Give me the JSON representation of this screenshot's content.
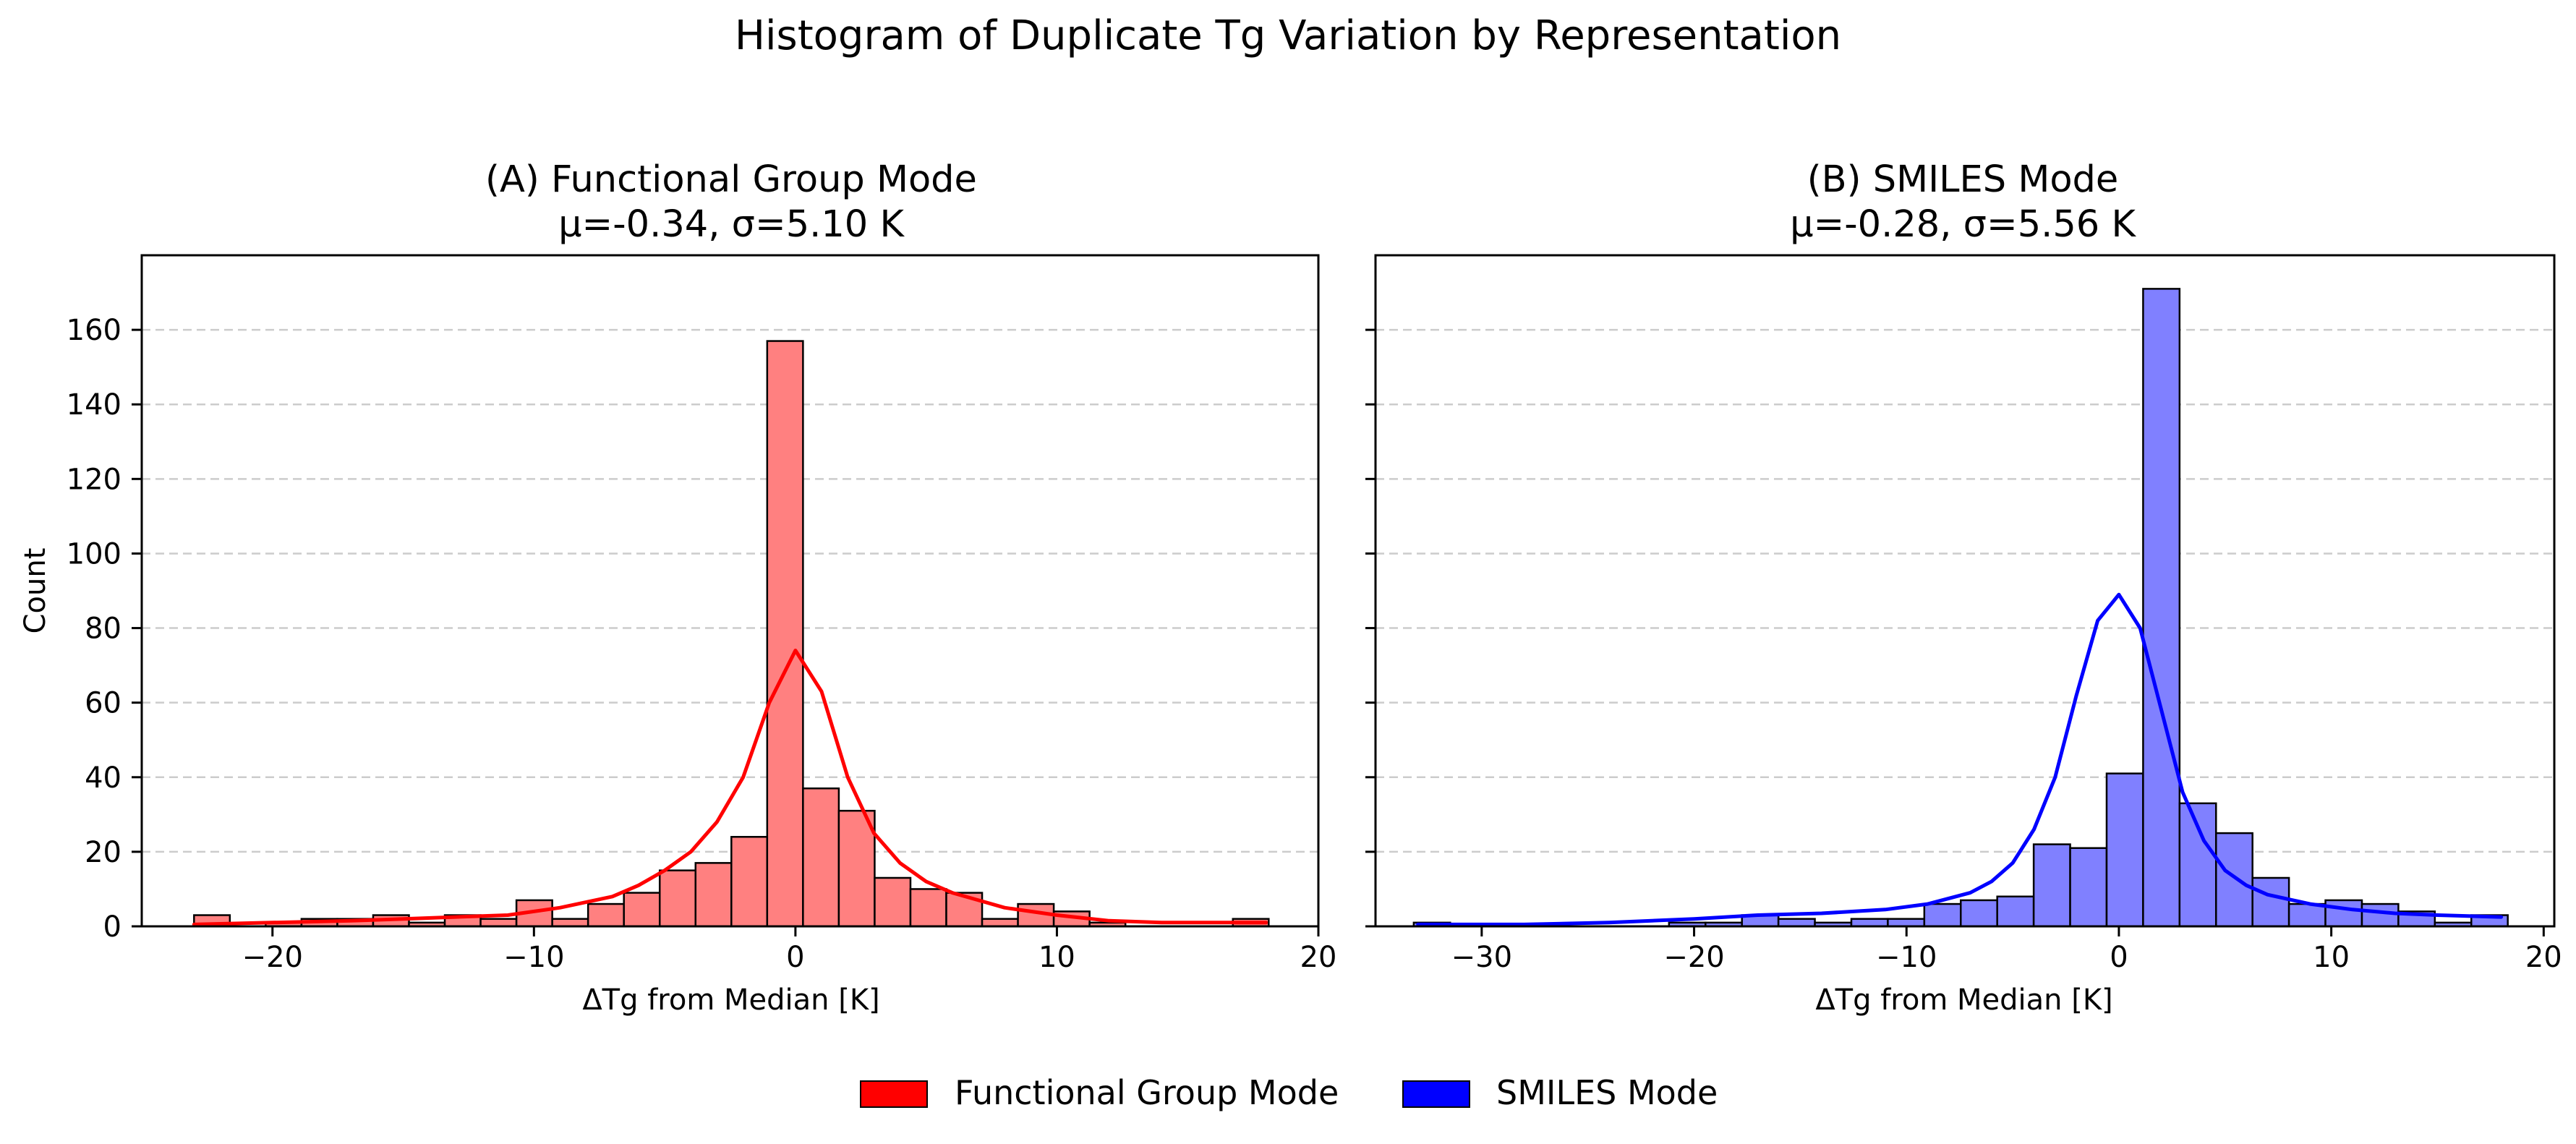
{
  "figure": {
    "suptitle": "Histogram of Duplicate Tg Variation by Representation"
  },
  "legend": {
    "placement": "bottom-center",
    "items": [
      {
        "label": "Functional Group Mode",
        "color": "#ff0000"
      },
      {
        "label": "SMILES Mode",
        "color": "#0000ff"
      }
    ]
  },
  "colors": {
    "grid": "#cccccc",
    "bar_edge": "#000000"
  },
  "chart_data": [
    {
      "type": "bar",
      "title": "(A) Functional Group Mode",
      "subtitle": "μ=-0.34, σ=5.10 K",
      "xlabel": "ΔTg from Median [K]",
      "ylabel": "Count",
      "xlim": [
        -25,
        20
      ],
      "ylim": [
        0,
        180
      ],
      "xticks": [
        -20,
        -10,
        0,
        10,
        20
      ],
      "xtick_labels": [
        "−20",
        "−10",
        "0",
        "10",
        "20"
      ],
      "yticks": [
        0,
        20,
        40,
        60,
        80,
        100,
        120,
        140,
        160
      ],
      "grid": "y, dashed",
      "bar_color": "#ff8080",
      "line_color": "#ff0000",
      "bins": {
        "start": -23.0,
        "width": 1.37,
        "counts": [
          3,
          0,
          1,
          2,
          2,
          3,
          1,
          3,
          2,
          7,
          2,
          6,
          9,
          15,
          17,
          24,
          157,
          37,
          31,
          13,
          10,
          9,
          2,
          6,
          4,
          1,
          0,
          0,
          0,
          2
        ]
      },
      "kde": {
        "x": [
          -23,
          -20,
          -17,
          -15,
          -13,
          -11,
          -9,
          -7,
          -6,
          -5,
          -4,
          -3,
          -2,
          -1,
          0,
          1,
          2,
          3,
          4,
          5,
          6,
          7,
          8,
          10,
          12,
          14,
          16,
          18
        ],
        "y": [
          0.5,
          1,
          1.5,
          2,
          2.5,
          3,
          5,
          8,
          11,
          15,
          20,
          28,
          40,
          60,
          74,
          63,
          40,
          25,
          17,
          12,
          9,
          7,
          5,
          3,
          1.5,
          1,
          1,
          1
        ]
      }
    },
    {
      "type": "bar",
      "title": "(B) SMILES Mode",
      "subtitle": "μ=-0.28, σ=5.56 K",
      "xlabel": "ΔTg from Median [K]",
      "ylabel": "",
      "xlim": [
        -35,
        20.5
      ],
      "ylim": [
        0,
        180
      ],
      "xticks": [
        -30,
        -20,
        -10,
        0,
        10,
        20
      ],
      "xtick_labels": [
        "−30",
        "−20",
        "−10",
        "0",
        "10",
        "20"
      ],
      "yticks": [
        0,
        20,
        40,
        60,
        80,
        100,
        120,
        140,
        160
      ],
      "grid": "y, dashed",
      "bar_color": "#8080ff",
      "line_color": "#0000ff",
      "bins": {
        "start": -33.2,
        "width": 1.717,
        "counts": [
          1,
          0,
          0,
          0,
          0,
          0,
          0,
          1,
          1,
          3,
          2,
          1,
          2,
          2,
          6,
          7,
          8,
          22,
          21,
          41,
          171,
          33,
          25,
          13,
          6,
          7,
          6,
          4,
          1,
          3
        ]
      },
      "kde": {
        "x": [
          -33,
          -28,
          -24,
          -20,
          -17,
          -14,
          -11,
          -9,
          -7,
          -6,
          -5,
          -4,
          -3,
          -2,
          -1,
          0,
          1,
          2,
          3,
          4,
          5,
          6,
          7,
          9,
          11,
          13,
          15,
          18
        ],
        "y": [
          0.5,
          0.5,
          1,
          2,
          3,
          3.5,
          4.5,
          6,
          9,
          12,
          17,
          26,
          40,
          62,
          82,
          89,
          80,
          58,
          36,
          23,
          15,
          11,
          8.5,
          6,
          4.5,
          3.5,
          3,
          2.5
        ]
      }
    }
  ]
}
